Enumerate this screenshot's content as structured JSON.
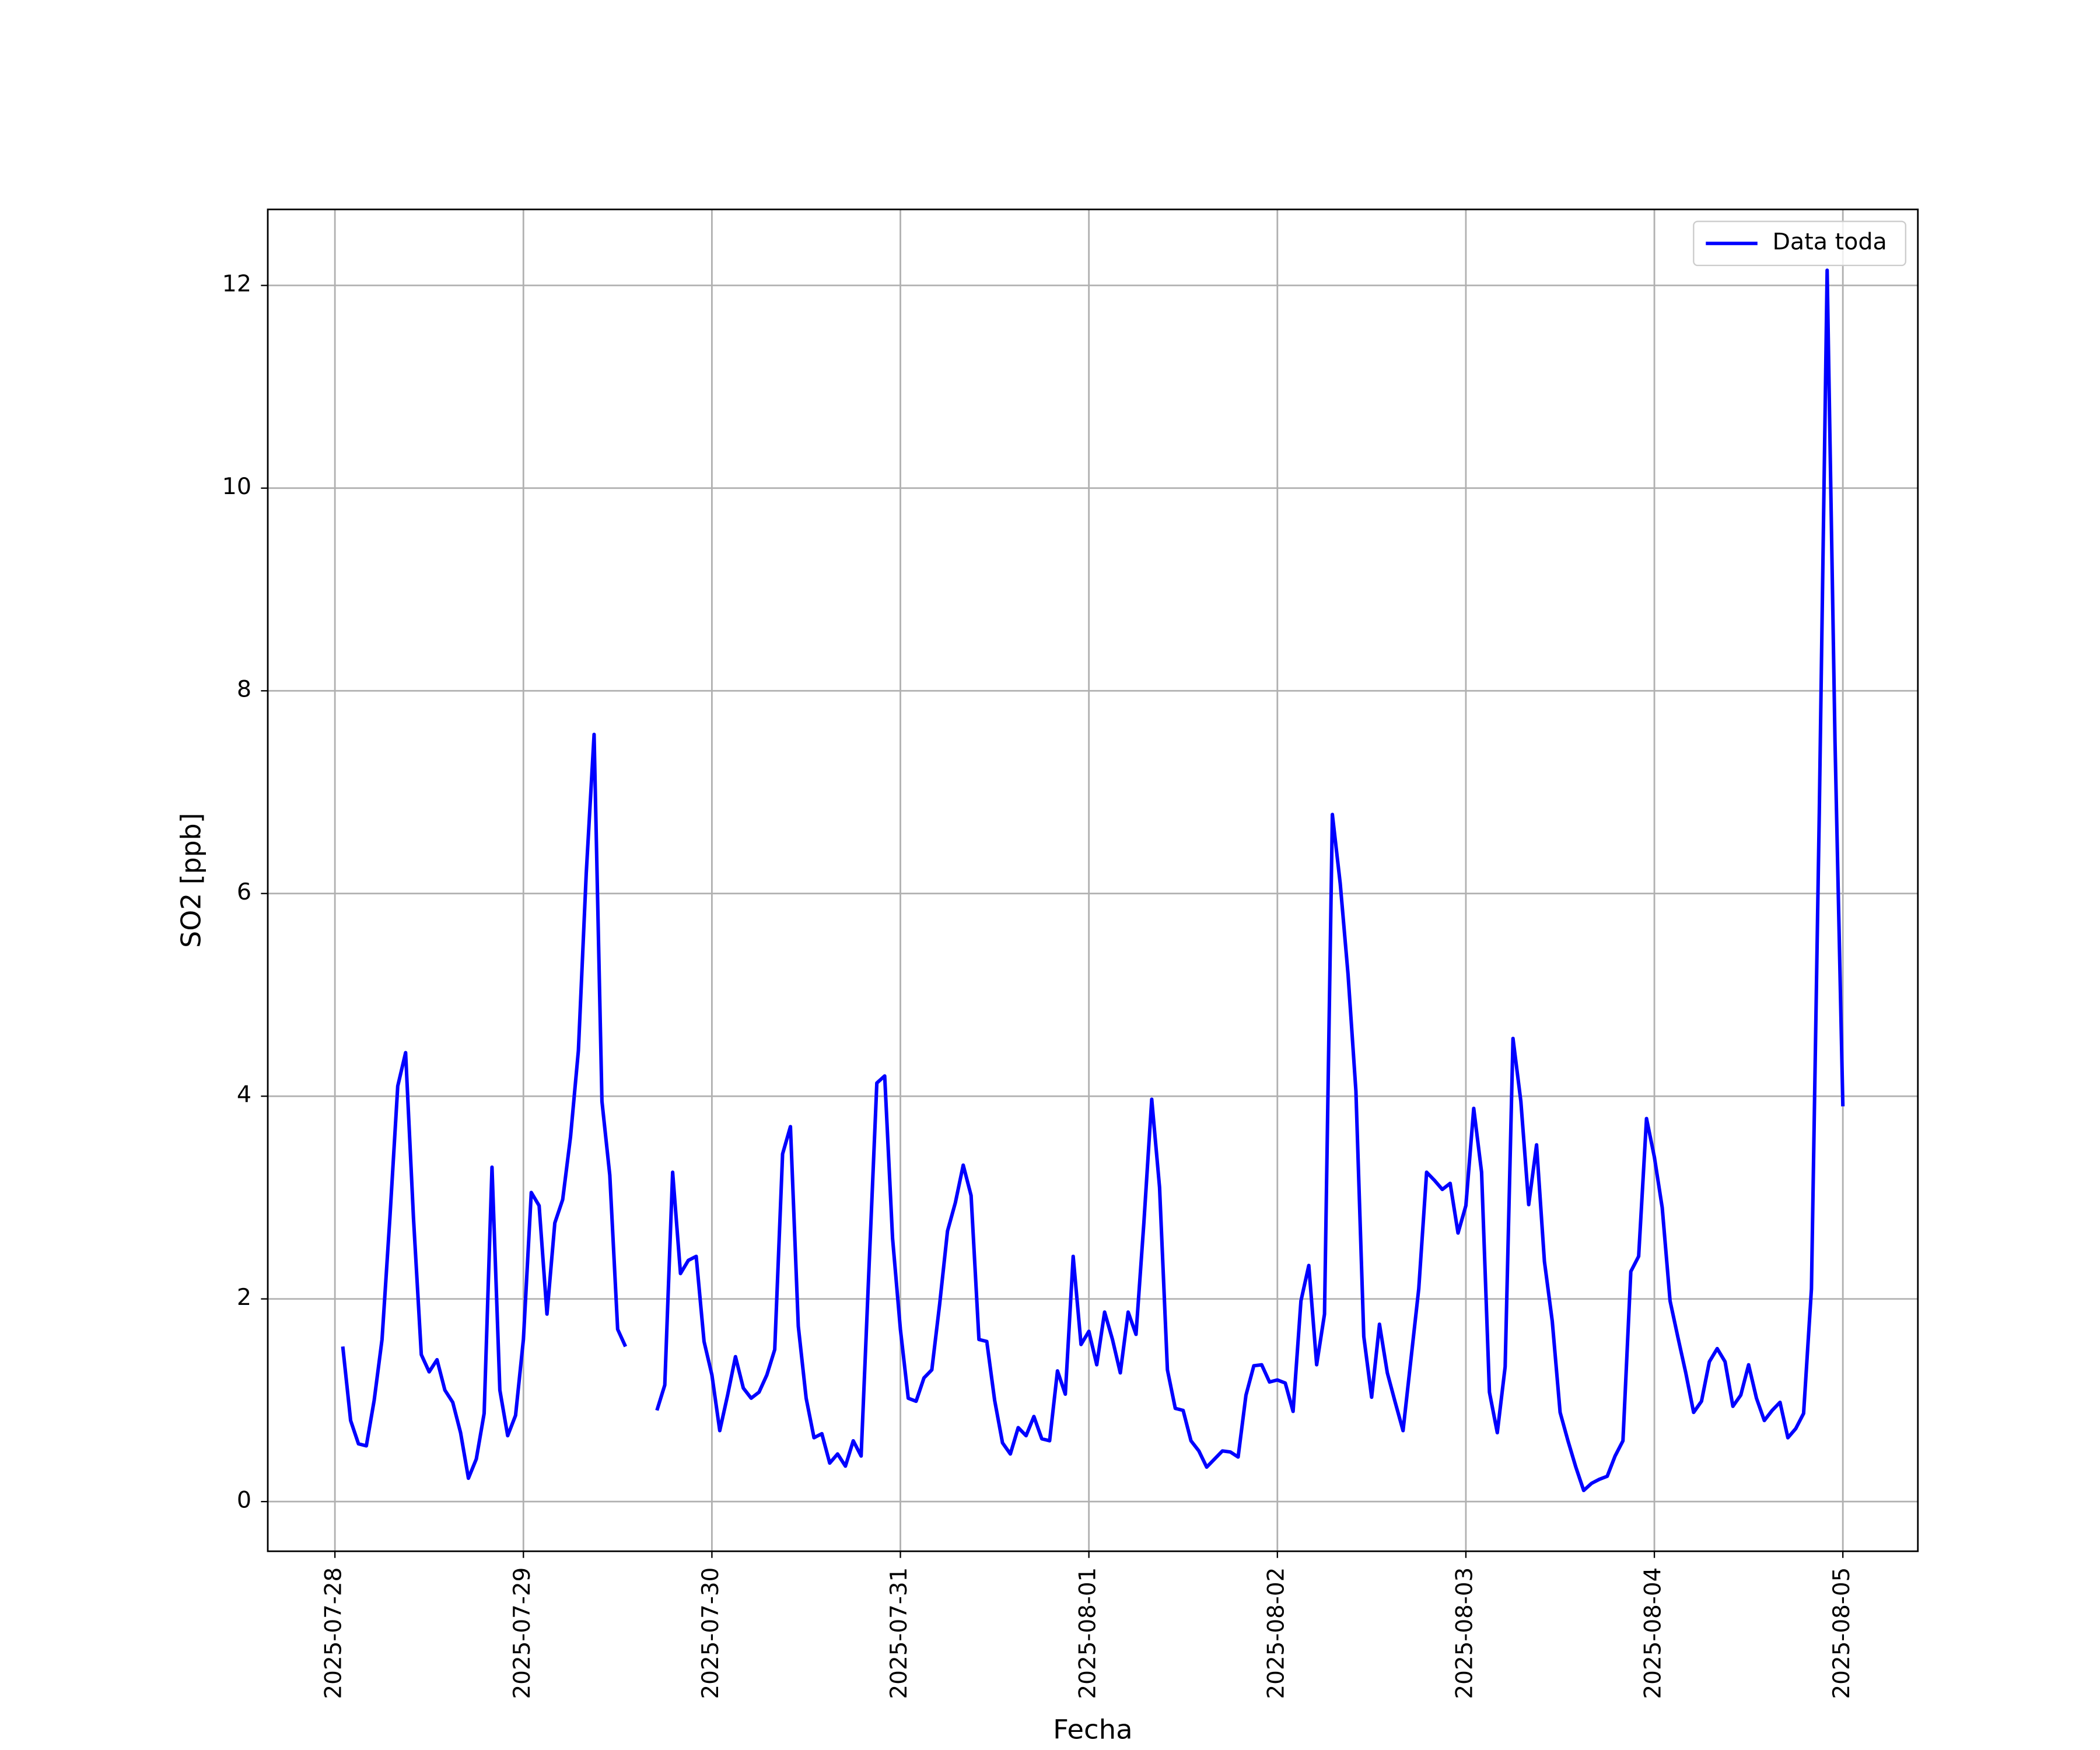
{
  "chart_data": {
    "type": "line",
    "xlabel": "Fecha",
    "ylabel": "SO2 [ppb]",
    "x": [
      "2025-07-28 01:00",
      "2025-07-28 02:00",
      "2025-07-28 03:00",
      "2025-07-28 04:00",
      "2025-07-28 05:00",
      "2025-07-28 06:00",
      "2025-07-28 07:00",
      "2025-07-28 08:00",
      "2025-07-28 09:00",
      "2025-07-28 10:00",
      "2025-07-28 11:00",
      "2025-07-28 12:00",
      "2025-07-28 13:00",
      "2025-07-28 14:00",
      "2025-07-28 15:00",
      "2025-07-28 16:00",
      "2025-07-28 17:00",
      "2025-07-28 18:00",
      "2025-07-28 19:00",
      "2025-07-28 20:00",
      "2025-07-28 21:00",
      "2025-07-28 22:00",
      "2025-07-28 23:00",
      "2025-07-29 00:00",
      "2025-07-29 01:00",
      "2025-07-29 02:00",
      "2025-07-29 03:00",
      "2025-07-29 04:00",
      "2025-07-29 05:00",
      "2025-07-29 06:00",
      "2025-07-29 07:00",
      "2025-07-29 08:00",
      "2025-07-29 09:00",
      "2025-07-29 10:00",
      "2025-07-29 11:00",
      "2025-07-29 12:00",
      "2025-07-29 13:00",
      "2025-07-29 14:00",
      "2025-07-29 15:00",
      "2025-07-29 16:00",
      "2025-07-29 17:00",
      "2025-07-29 18:00",
      "2025-07-29 19:00",
      "2025-07-29 20:00",
      "2025-07-29 21:00",
      "2025-07-29 22:00",
      "2025-07-29 23:00",
      "2025-07-30 00:00",
      "2025-07-30 01:00",
      "2025-07-30 02:00",
      "2025-07-30 03:00",
      "2025-07-30 04:00",
      "2025-07-30 05:00",
      "2025-07-30 06:00",
      "2025-07-30 07:00",
      "2025-07-30 08:00",
      "2025-07-30 09:00",
      "2025-07-30 10:00",
      "2025-07-30 11:00",
      "2025-07-30 12:00",
      "2025-07-30 13:00",
      "2025-07-30 14:00",
      "2025-07-30 15:00",
      "2025-07-30 16:00",
      "2025-07-30 17:00",
      "2025-07-30 18:00",
      "2025-07-30 19:00",
      "2025-07-30 20:00",
      "2025-07-30 21:00",
      "2025-07-30 22:00",
      "2025-07-30 23:00",
      "2025-07-31 00:00",
      "2025-07-31 01:00",
      "2025-07-31 02:00",
      "2025-07-31 03:00",
      "2025-07-31 04:00",
      "2025-07-31 05:00",
      "2025-07-31 06:00",
      "2025-07-31 07:00",
      "2025-07-31 08:00",
      "2025-07-31 09:00",
      "2025-07-31 10:00",
      "2025-07-31 11:00",
      "2025-07-31 12:00",
      "2025-07-31 13:00",
      "2025-07-31 14:00",
      "2025-07-31 15:00",
      "2025-07-31 16:00",
      "2025-07-31 17:00",
      "2025-07-31 18:00",
      "2025-07-31 19:00",
      "2025-07-31 20:00",
      "2025-07-31 21:00",
      "2025-07-31 22:00",
      "2025-07-31 23:00",
      "2025-08-01 00:00",
      "2025-08-01 01:00",
      "2025-08-01 02:00",
      "2025-08-01 03:00",
      "2025-08-01 04:00",
      "2025-08-01 05:00",
      "2025-08-01 06:00",
      "2025-08-01 07:00",
      "2025-08-01 08:00",
      "2025-08-01 09:00",
      "2025-08-01 10:00",
      "2025-08-01 11:00",
      "2025-08-01 12:00",
      "2025-08-01 13:00",
      "2025-08-01 14:00",
      "2025-08-01 15:00",
      "2025-08-01 16:00",
      "2025-08-01 17:00",
      "2025-08-01 18:00",
      "2025-08-01 19:00",
      "2025-08-01 20:00",
      "2025-08-01 21:00",
      "2025-08-01 22:00",
      "2025-08-01 23:00",
      "2025-08-02 00:00",
      "2025-08-02 01:00",
      "2025-08-02 02:00",
      "2025-08-02 03:00",
      "2025-08-02 04:00",
      "2025-08-02 05:00",
      "2025-08-02 06:00",
      "2025-08-02 07:00",
      "2025-08-02 08:00",
      "2025-08-02 09:00",
      "2025-08-02 10:00",
      "2025-08-02 11:00",
      "2025-08-02 12:00",
      "2025-08-02 13:00",
      "2025-08-02 14:00",
      "2025-08-02 15:00",
      "2025-08-02 16:00",
      "2025-08-02 17:00",
      "2025-08-02 18:00",
      "2025-08-02 19:00",
      "2025-08-02 20:00",
      "2025-08-02 21:00",
      "2025-08-02 22:00",
      "2025-08-02 23:00",
      "2025-08-03 00:00",
      "2025-08-03 01:00",
      "2025-08-03 02:00",
      "2025-08-03 03:00",
      "2025-08-03 04:00",
      "2025-08-03 05:00",
      "2025-08-03 06:00",
      "2025-08-03 07:00",
      "2025-08-03 08:00",
      "2025-08-03 09:00",
      "2025-08-03 10:00",
      "2025-08-03 11:00",
      "2025-08-03 12:00",
      "2025-08-03 13:00",
      "2025-08-03 14:00",
      "2025-08-03 15:00",
      "2025-08-03 16:00",
      "2025-08-03 17:00",
      "2025-08-03 18:00",
      "2025-08-03 19:00",
      "2025-08-03 20:00",
      "2025-08-03 21:00",
      "2025-08-03 22:00",
      "2025-08-03 23:00",
      "2025-08-04 00:00",
      "2025-08-04 01:00",
      "2025-08-04 02:00",
      "2025-08-04 03:00",
      "2025-08-04 04:00",
      "2025-08-04 05:00",
      "2025-08-04 06:00",
      "2025-08-04 07:00",
      "2025-08-04 08:00",
      "2025-08-04 09:00",
      "2025-08-04 10:00",
      "2025-08-04 11:00",
      "2025-08-04 12:00",
      "2025-08-04 13:00",
      "2025-08-04 14:00",
      "2025-08-04 15:00",
      "2025-08-04 16:00",
      "2025-08-04 17:00",
      "2025-08-04 18:00",
      "2025-08-04 19:00",
      "2025-08-04 20:00",
      "2025-08-04 21:00",
      "2025-08-04 22:00",
      "2025-08-04 23:00",
      "2025-08-05 00:00"
    ],
    "series": [
      {
        "name": "Data toda",
        "color": "#0000ff",
        "values": [
          1.53,
          0.8,
          0.57,
          0.55,
          1.0,
          1.6,
          2.8,
          4.1,
          4.43,
          2.8,
          1.45,
          1.28,
          1.4,
          1.1,
          0.98,
          0.68,
          0.23,
          0.42,
          0.87,
          3.3,
          1.1,
          0.65,
          0.85,
          1.6,
          3.05,
          2.92,
          1.85,
          2.75,
          2.98,
          3.6,
          4.45,
          6.2,
          7.57,
          3.95,
          3.22,
          1.7,
          1.53,
          null,
          null,
          null,
          0.9,
          1.15,
          3.25,
          2.25,
          2.38,
          2.42,
          1.58,
          1.25,
          0.7,
          1.05,
          1.43,
          1.12,
          1.02,
          1.08,
          1.25,
          1.5,
          3.43,
          3.7,
          1.73,
          1.02,
          0.63,
          0.67,
          0.38,
          0.47,
          0.35,
          0.6,
          0.45,
          2.3,
          4.13,
          4.2,
          2.6,
          1.7,
          1.02,
          0.99,
          1.22,
          1.3,
          1.95,
          2.67,
          2.95,
          3.32,
          3.02,
          1.6,
          1.58,
          1.0,
          0.58,
          0.47,
          0.73,
          0.65,
          0.84,
          0.62,
          0.6,
          1.29,
          1.06,
          2.42,
          1.55,
          1.68,
          1.35,
          1.87,
          1.6,
          1.27,
          1.87,
          1.65,
          2.75,
          3.97,
          3.1,
          1.3,
          0.92,
          0.9,
          0.6,
          0.5,
          0.34,
          0.42,
          0.5,
          0.49,
          0.44,
          1.05,
          1.34,
          1.35,
          1.18,
          1.2,
          1.17,
          0.89,
          1.98,
          2.33,
          1.35,
          1.85,
          6.78,
          6.1,
          5.2,
          4.05,
          1.63,
          1.03,
          1.75,
          1.27,
          0.98,
          0.7,
          1.4,
          2.1,
          3.25,
          3.17,
          3.08,
          3.14,
          2.65,
          2.92,
          3.88,
          3.25,
          1.08,
          0.68,
          1.33,
          4.57,
          3.95,
          2.93,
          3.52,
          2.37,
          1.78,
          0.88,
          0.6,
          0.34,
          0.11,
          0.18,
          0.22,
          0.25,
          0.45,
          0.6,
          2.27,
          2.42,
          3.78,
          3.4,
          2.9,
          1.98,
          1.62,
          1.27,
          0.88,
          0.99,
          1.38,
          1.51,
          1.38,
          0.94,
          1.05,
          1.35,
          1.02,
          0.8,
          0.9,
          0.98,
          0.63,
          0.72,
          0.87,
          2.1,
          6.8,
          12.15,
          7.5,
          3.9
        ]
      }
    ],
    "xlim": [
      "2025-07-27 15:27",
      "2025-08-05 09:33"
    ],
    "xticks": [
      "2025-07-28",
      "2025-07-29",
      "2025-07-30",
      "2025-07-31",
      "2025-08-01",
      "2025-08-02",
      "2025-08-03",
      "2025-08-04",
      "2025-08-05"
    ],
    "ylim": [
      -0.49,
      12.75
    ],
    "yticks": [
      0,
      2,
      4,
      6,
      8,
      10,
      12
    ],
    "grid": true,
    "legend": "upper right"
  }
}
